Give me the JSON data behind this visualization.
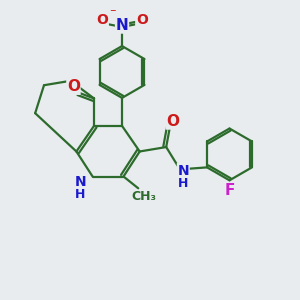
{
  "bg_color": "#e8ecef",
  "bond_color": "#2d6b2d",
  "bond_width": 1.6,
  "atom_colors": {
    "N": "#1a1acc",
    "O": "#cc1a1a",
    "F": "#cc22cc",
    "H": "#1a1acc"
  },
  "font_size": 10,
  "fig_size": [
    3.0,
    3.0
  ],
  "dpi": 100
}
